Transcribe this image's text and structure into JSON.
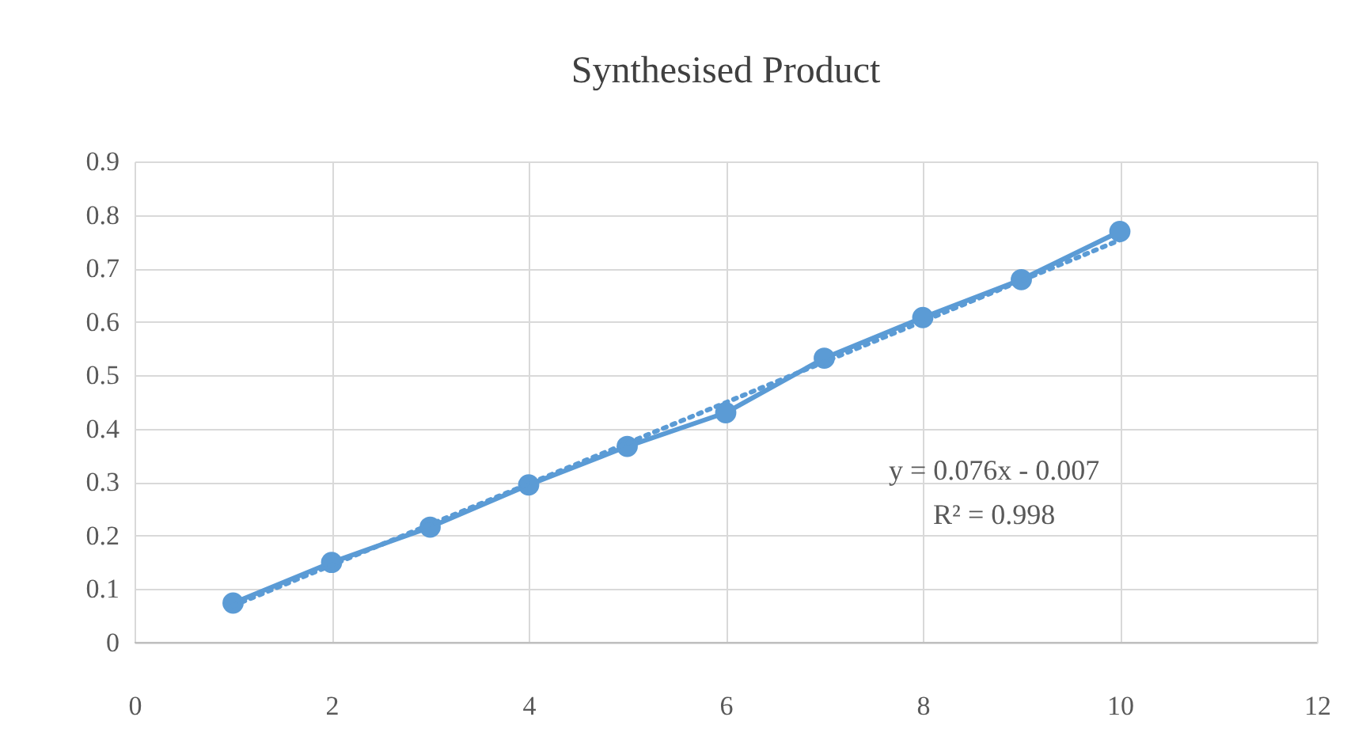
{
  "chart_data": {
    "type": "line",
    "title": "Synthesised Product",
    "x": [
      1,
      2,
      3,
      4,
      5,
      6,
      7,
      8,
      9,
      10
    ],
    "series": [
      {
        "color": "#5b9bd5",
        "values": [
          0.074,
          0.15,
          0.216,
          0.295,
          0.367,
          0.43,
          0.532,
          0.608,
          0.679,
          0.769
        ]
      },
      {
        "type": "line",
        "color": "#5b9bd5",
        "x": [
          1,
          10
        ],
        "values": [
          0.069,
          0.753
        ],
        "line_style": "dotted",
        "marker": "none"
      }
    ],
    "annotations": [
      "y = 0.076x - 0.007",
      "R² = 0.998"
    ],
    "xlim": [
      0,
      12
    ],
    "xticks": [
      0,
      2,
      4,
      6,
      8,
      10,
      12
    ],
    "ylim": [
      0,
      0.9
    ],
    "yticks": [
      0,
      0.1,
      0.2,
      0.3,
      0.4,
      0.5,
      0.6,
      0.7,
      0.8,
      0.9
    ],
    "grid": true,
    "marker": "circle",
    "line_style": "solid"
  }
}
